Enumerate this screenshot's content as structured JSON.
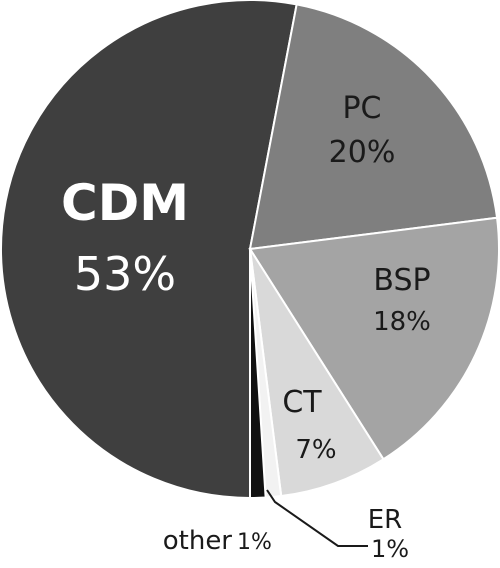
{
  "chart_data": {
    "type": "pie",
    "slices": [
      {
        "label": "CDM",
        "value_label": "53%",
        "value": 53,
        "color": "#3f3f3f"
      },
      {
        "label": "PC",
        "value_label": "20%",
        "value": 20,
        "color": "#7f7f7f"
      },
      {
        "label": "BSP",
        "value_label": "18%",
        "value": 18,
        "color": "#a4a4a4"
      },
      {
        "label": "CT",
        "value_label": "7%",
        "value": 7,
        "color": "#d9d9d9"
      },
      {
        "label": "ER",
        "value_label": "1%",
        "value": 1,
        "color": "#f2f2f2"
      },
      {
        "label": "other",
        "value_label": "1%",
        "value": 1,
        "color": "#111111"
      }
    ],
    "slice_border_color": "#ffffff"
  }
}
